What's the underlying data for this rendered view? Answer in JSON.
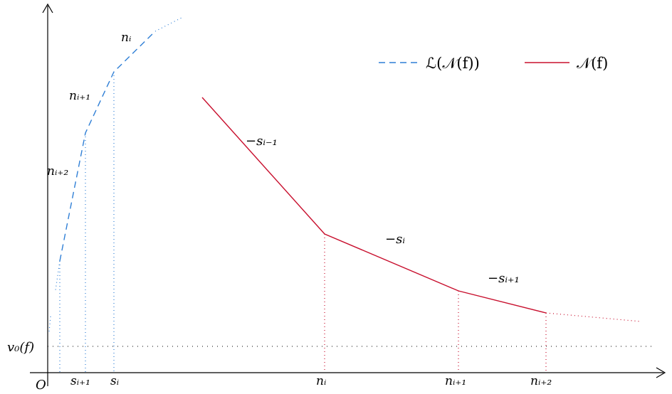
{
  "colors": {
    "legendre": "#2f7fd6",
    "newton": "#c8102e",
    "axis": "#000000",
    "guide": "#000000"
  },
  "legend": {
    "legendre_label": "ℒ(𝒩(f))",
    "newton_label": "𝒩(f)"
  },
  "labels": {
    "origin": "O",
    "v0": "v₀(f)",
    "s_i": "sᵢ",
    "s_i1": "sᵢ₊₁",
    "n_i_x": "nᵢ",
    "n_i1_x": "nᵢ₊₁",
    "n_i2_x": "nᵢ₊₂",
    "slope_im1": "−sᵢ₋₁",
    "slope_i": "−sᵢ",
    "slope_i1": "−sᵢ₊₁",
    "seg_n_i": "nᵢ",
    "seg_n_i1": "nᵢ₊₁",
    "seg_n_i2": "nᵢ₊₂"
  }
}
